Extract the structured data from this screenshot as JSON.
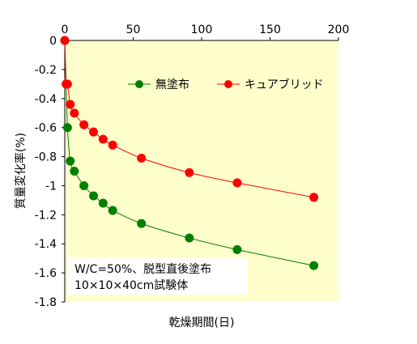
{
  "chart_data": {
    "type": "scatter",
    "xlabel": "乾燥期間(日)",
    "ylabel": "質量変化率(%)",
    "xlim": [
      0,
      200
    ],
    "ylim": [
      -1.8,
      0
    ],
    "x_ticks": [
      "0",
      "50",
      "100",
      "150",
      "200"
    ],
    "y_ticks": [
      "0",
      "-0.2",
      "-0.4",
      "-0.6",
      "-0.8",
      "-1",
      "-1.2",
      "-1.4",
      "-1.6",
      "-1.8"
    ],
    "x_tick_values": [
      0,
      50,
      100,
      150,
      200
    ],
    "y_tick_values": [
      0,
      -0.2,
      -0.4,
      -0.6,
      -0.8,
      -1,
      -1.2,
      -1.4,
      -1.6,
      -1.8
    ],
    "plot_background": "#ffffcc",
    "grid": false,
    "legend_position": "top-right",
    "annotation": [
      "W/C=50%、脱型直後塗布",
      "10×10×40cm試験体"
    ],
    "series": [
      {
        "name": "無塗布",
        "color": "#008000",
        "x": [
          0,
          1,
          2,
          4,
          7,
          14,
          21,
          28,
          35,
          56,
          91,
          126,
          182
        ],
        "y": [
          0,
          -0.3,
          -0.6,
          -0.83,
          -0.9,
          -1.0,
          -1.07,
          -1.12,
          -1.17,
          -1.26,
          -1.36,
          -1.44,
          -1.55
        ]
      },
      {
        "name": "キュアブリッド",
        "color": "#ff0000",
        "x": [
          0,
          1,
          2,
          4,
          7,
          14,
          21,
          28,
          35,
          56,
          91,
          126,
          182
        ],
        "y": [
          0,
          -0.3,
          -0.3,
          -0.44,
          -0.5,
          -0.58,
          -0.63,
          -0.68,
          -0.72,
          -0.81,
          -0.91,
          -0.98,
          -1.08
        ]
      }
    ]
  }
}
